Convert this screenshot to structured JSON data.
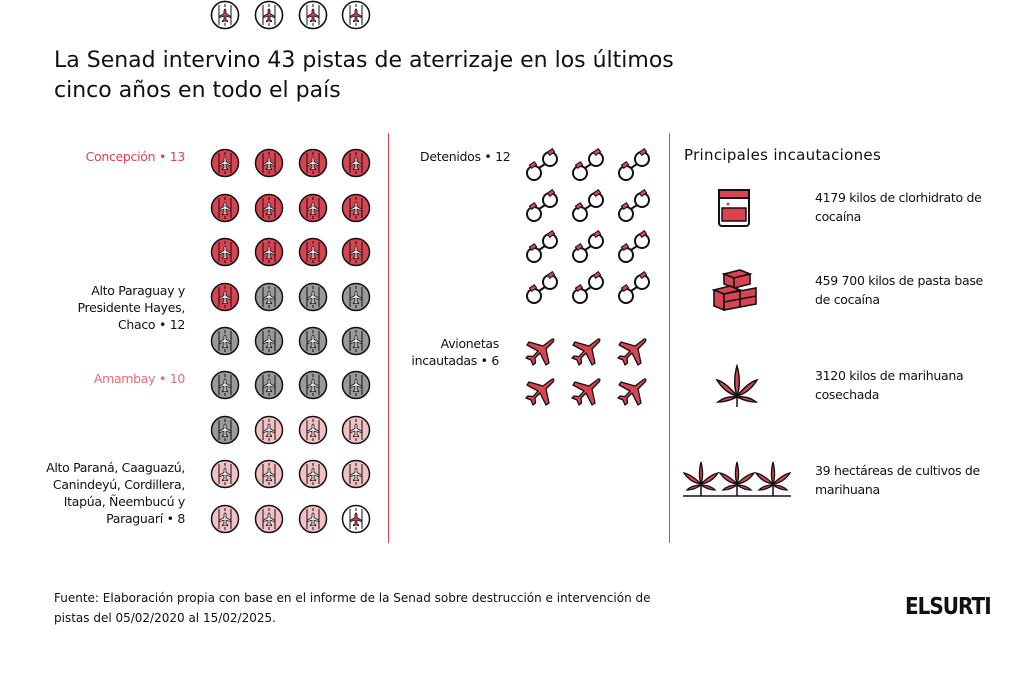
{
  "title": "La Senad intervino 43 pistas de aterrizaje en los últimos cinco años en todo el país",
  "colors": {
    "accent": "#d94452",
    "red_fill": "#d94452",
    "gray_fill": "#9a9a9a",
    "pink_fill": "#f3c1c4",
    "white_fill": "#ffffff"
  },
  "regions": [
    {
      "label": "Concepción • 13",
      "count": 13,
      "color": "#d94452"
    },
    {
      "label": "Alto Paraguay y Presidente Hayes, Chaco • 12",
      "count": 12,
      "color": "#111111"
    },
    {
      "label": "Amambay • 10",
      "count": 10,
      "color": "#e46a74"
    },
    {
      "label": "Alto Paraná, Caaguazú, Canindeyú, Cordillera, Itapúa, Ñeembucú y Paraguarí • 8",
      "count": 8,
      "color": "#111111"
    }
  ],
  "detainees": {
    "label": "Detenidos • 12",
    "count": 12,
    "icon": "handcuffs-icon"
  },
  "aircraft": {
    "label": "Avionetas incautadas • 6",
    "count": 6,
    "icon": "airplane-icon"
  },
  "seizures": {
    "title": "Principales incautaciones",
    "items": [
      {
        "icon": "cocaine-bag-icon",
        "text": "4179 kilos de clorhidrato de cocaína"
      },
      {
        "icon": "cocaine-bricks-icon",
        "text": "459 700 kilos de pasta base de cocaína"
      },
      {
        "icon": "marijuana-leaf-icon",
        "text": "3120 kilos de marihuana cosechada"
      },
      {
        "icon": "marijuana-plants-icon",
        "text": "39 hectáreas de cultivos de marihuana"
      }
    ]
  },
  "source": "Fuente: Elaboración propia con base en el informe de la Senad sobre destrucción e intervención de pistas del 05/02/2020 al 15/02/2025.",
  "logo": "ELSURTI"
}
